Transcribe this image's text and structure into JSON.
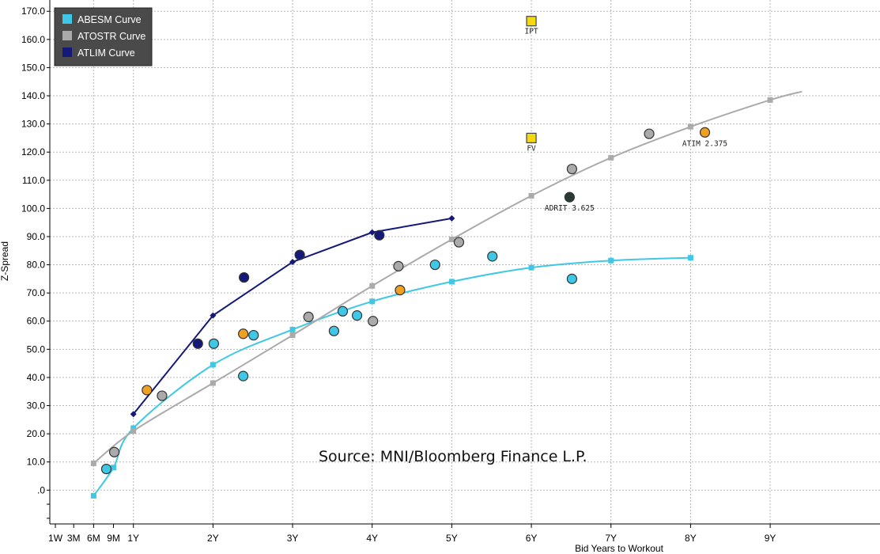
{
  "chart_data": {
    "type": "scatter",
    "xlabel": "Bid Years to Workout",
    "ylabel": "Z-Spread",
    "source": "Source: MNI/Bloomberg Finance L.P.",
    "xlim": [
      -1.05,
      9.38
    ],
    "ylim": [
      -12,
      174
    ],
    "y_ticks": [
      {
        "v": 0,
        "label": ".0"
      },
      {
        "v": 10,
        "label": "10.0"
      },
      {
        "v": 20,
        "label": "20.0"
      },
      {
        "v": 30,
        "label": "30.0"
      },
      {
        "v": 40,
        "label": "40.0"
      },
      {
        "v": 50,
        "label": "50.0"
      },
      {
        "v": 60,
        "label": "60.0"
      },
      {
        "v": 70,
        "label": "70.0"
      },
      {
        "v": 80,
        "label": "80.0"
      },
      {
        "v": 90,
        "label": "90.0"
      },
      {
        "v": 100,
        "label": "100.0"
      },
      {
        "v": 110,
        "label": "110.0"
      },
      {
        "v": 120,
        "label": "120.0"
      },
      {
        "v": 130,
        "label": "130.0"
      },
      {
        "v": 140,
        "label": "140.0"
      },
      {
        "v": 150,
        "label": "150.0"
      },
      {
        "v": 160,
        "label": "160.0"
      },
      {
        "v": 170,
        "label": "170.0"
      }
    ],
    "x_ticks": [
      {
        "v": -0.98,
        "label": "1W"
      },
      {
        "v": -0.75,
        "label": "3M"
      },
      {
        "v": -0.5,
        "label": "6M"
      },
      {
        "v": -0.25,
        "label": "9M"
      },
      {
        "v": 0,
        "label": "1Y"
      },
      {
        "v": 1,
        "label": "2Y"
      },
      {
        "v": 2,
        "label": "3Y"
      },
      {
        "v": 3,
        "label": "4Y"
      },
      {
        "v": 4,
        "label": "5Y"
      },
      {
        "v": 5,
        "label": "6Y"
      },
      {
        "v": 6,
        "label": "7Y"
      },
      {
        "v": 7,
        "label": "8Y"
      },
      {
        "v": 8,
        "label": "9Y"
      }
    ],
    "x_grid": [
      -0.5,
      0,
      1,
      2,
      3,
      4,
      5,
      6,
      7,
      8
    ],
    "legend": [
      {
        "name": "ABESM Curve",
        "color": "#3ec8e6"
      },
      {
        "name": "ATOSTR Curve",
        "color": "#aaaaaa"
      },
      {
        "name": "ATLIM Curve",
        "color": "#14197a"
      }
    ],
    "series": [
      {
        "name": "ABESM Curve",
        "color": "#3ec8e6",
        "marker": "square",
        "x": [
          -0.5,
          -0.25,
          0,
          1,
          2,
          3,
          4,
          5,
          6,
          7
        ],
        "y": [
          -2,
          8,
          22,
          44.5,
          57,
          67,
          74,
          79,
          81.5,
          82.5
        ]
      },
      {
        "name": "ATOSTR Curve",
        "color": "#aaaaaa",
        "marker": "square",
        "x": [
          -0.5,
          0,
          1,
          2,
          3,
          4,
          5,
          6,
          7,
          8,
          8.4
        ],
        "y": [
          9.5,
          21,
          38,
          55,
          72.5,
          89,
          104.5,
          118,
          129,
          138.5,
          141.5
        ]
      },
      {
        "name": "ATLIM Curve",
        "color": "#14197a",
        "marker": "diamond",
        "x": [
          0,
          1,
          2,
          3,
          4
        ],
        "y": [
          27,
          62,
          81,
          91.5,
          96.5
        ]
      }
    ],
    "bonds": [
      {
        "x": -0.34,
        "y": 7.5,
        "color": "#3ec8e6"
      },
      {
        "x": -0.24,
        "y": 13.5,
        "color": "#aaaaaa"
      },
      {
        "x": 0.17,
        "y": 35.5,
        "color": "#f0a020"
      },
      {
        "x": 0.36,
        "y": 33.5,
        "color": "#aaaaaa"
      },
      {
        "x": 0.81,
        "y": 52,
        "color": "#14197a"
      },
      {
        "x": 1.01,
        "y": 52,
        "color": "#3ec8e6"
      },
      {
        "x": 1.38,
        "y": 40.5,
        "color": "#3ec8e6"
      },
      {
        "x": 1.38,
        "y": 55.5,
        "color": "#f0a020"
      },
      {
        "x": 1.51,
        "y": 55,
        "color": "#3ec8e6"
      },
      {
        "x": 1.39,
        "y": 75.5,
        "color": "#14197a"
      },
      {
        "x": 2.09,
        "y": 83.5,
        "color": "#14197a"
      },
      {
        "x": 2.2,
        "y": 61.5,
        "color": "#aaaaaa"
      },
      {
        "x": 2.52,
        "y": 56.5,
        "color": "#3ec8e6"
      },
      {
        "x": 2.63,
        "y": 63.5,
        "color": "#3ec8e6"
      },
      {
        "x": 2.81,
        "y": 62,
        "color": "#3ec8e6"
      },
      {
        "x": 3.01,
        "y": 60,
        "color": "#aaaaaa"
      },
      {
        "x": 3.09,
        "y": 90.5,
        "color": "#14197a"
      },
      {
        "x": 3.33,
        "y": 79.5,
        "color": "#aaaaaa"
      },
      {
        "x": 3.35,
        "y": 71,
        "color": "#f0a020"
      },
      {
        "x": 3.79,
        "y": 80,
        "color": "#3ec8e6"
      },
      {
        "x": 4.09,
        "y": 88,
        "color": "#aaaaaa"
      },
      {
        "x": 4.51,
        "y": 83,
        "color": "#3ec8e6"
      },
      {
        "x": 5.51,
        "y": 75,
        "color": "#3ec8e6"
      },
      {
        "x": 5.51,
        "y": 114,
        "color": "#aaaaaa"
      },
      {
        "x": 6.48,
        "y": 126.5,
        "color": "#aaaaaa"
      },
      {
        "x": 5.48,
        "y": 104,
        "color": "#2c3a36",
        "label": "ADRIT 3.625"
      },
      {
        "x": 7.18,
        "y": 127,
        "color": "#f0a020",
        "label": "ATIM 2.375"
      }
    ],
    "new_issues": [
      {
        "x": 5.0,
        "y": 166.5,
        "label": "IPT"
      },
      {
        "x": 5.0,
        "y": 125,
        "label": "FV"
      }
    ]
  }
}
